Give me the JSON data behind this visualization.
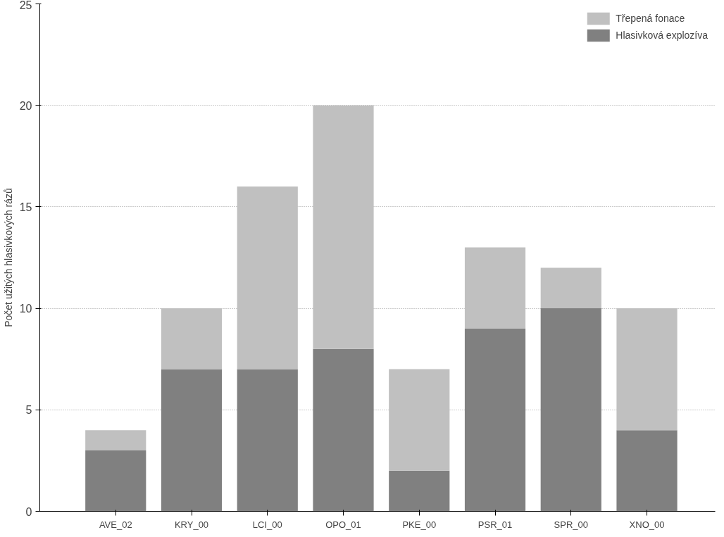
{
  "chart_data": {
    "type": "bar",
    "stacked": true,
    "ylabel": "Počet užitých hlasivkových rázů",
    "categories": [
      "AVE_02",
      "KRY_00",
      "LCI_00",
      "OPO_01",
      "PKE_00",
      "PSR_01",
      "SPR_00",
      "XNO_00"
    ],
    "series": [
      {
        "name": "Hlasivková explozíva",
        "color": "#808080",
        "values": [
          3,
          7,
          7,
          8,
          2,
          9,
          10,
          4
        ]
      },
      {
        "name": "Třepená fonace",
        "color": "#c0c0c0",
        "values": [
          1,
          3,
          9,
          12,
          5,
          4,
          2,
          6
        ]
      }
    ],
    "ylim": [
      0,
      25
    ],
    "yticks": [
      0,
      5,
      10,
      15,
      20,
      25
    ],
    "grid": "y",
    "legend": "top right"
  }
}
